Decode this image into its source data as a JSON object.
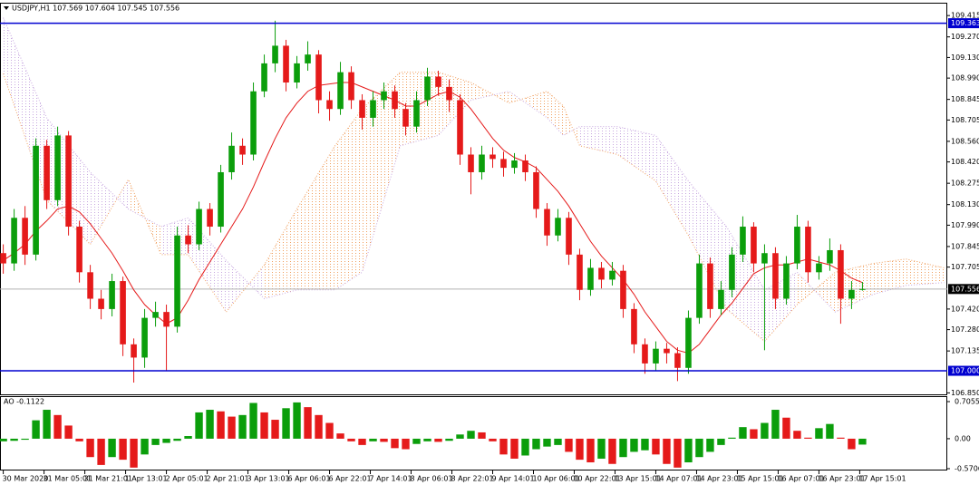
{
  "chart_data": [
    {
      "type": "candlestick",
      "header": "USDJPY,H1 107.569 107.604 107.545 107.556",
      "up_color": "#0b9e0b",
      "down_color": "#e51a1a",
      "open": [
        107.8,
        107.73,
        108.04,
        107.79,
        108.53,
        108.16,
        108.6,
        107.98,
        107.67,
        107.49,
        107.42,
        107.61,
        107.18,
        107.09,
        107.36,
        107.4,
        107.3,
        107.92,
        107.86,
        108.1,
        107.98,
        108.35,
        108.53,
        108.47,
        108.9,
        109.09,
        109.21,
        108.96,
        109.09,
        109.15,
        108.84,
        108.78,
        109.03,
        108.84,
        108.72,
        108.84,
        108.9,
        108.78,
        108.66,
        108.84,
        109.0,
        108.93,
        108.84,
        108.47,
        108.35,
        108.47,
        108.44,
        108.38,
        108.43,
        108.35,
        108.1,
        107.92,
        108.04,
        107.79,
        107.55,
        107.7,
        107.62,
        107.68,
        107.42,
        107.18,
        107.05,
        107.15,
        107.12,
        107.02,
        107.36,
        107.73,
        107.42,
        107.55,
        107.79,
        107.98,
        107.73,
        107.8,
        107.49,
        107.73,
        107.98,
        107.67,
        107.73,
        107.82,
        107.49,
        107.55
      ],
      "high": [
        107.86,
        108.1,
        108.12,
        108.58,
        108.57,
        108.66,
        108.63,
        108.02,
        107.72,
        107.55,
        107.66,
        107.64,
        107.22,
        107.42,
        107.47,
        107.45,
        107.98,
        107.99,
        108.15,
        108.14,
        108.4,
        108.62,
        108.58,
        108.96,
        109.15,
        109.38,
        109.25,
        109.14,
        109.24,
        109.18,
        108.9,
        109.1,
        109.07,
        108.88,
        108.9,
        108.96,
        108.94,
        108.82,
        108.9,
        109.06,
        109.04,
        108.98,
        108.88,
        108.52,
        108.53,
        108.52,
        108.49,
        108.48,
        108.47,
        108.39,
        108.14,
        108.1,
        108.08,
        107.83,
        107.76,
        107.74,
        107.74,
        107.72,
        107.46,
        107.22,
        107.2,
        107.19,
        107.16,
        107.41,
        107.79,
        107.77,
        107.61,
        107.84,
        108.05,
        108.01,
        107.86,
        107.84,
        107.78,
        108.06,
        108.02,
        107.78,
        107.9,
        107.86,
        107.61,
        107.604
      ],
      "low": [
        107.66,
        107.68,
        107.72,
        107.75,
        108.1,
        108.12,
        107.92,
        107.6,
        107.42,
        107.35,
        107.37,
        107.1,
        106.92,
        107.02,
        107.3,
        107.0,
        107.26,
        107.8,
        107.82,
        107.92,
        107.94,
        108.3,
        108.4,
        108.43,
        108.86,
        109.03,
        108.9,
        108.92,
        109.04,
        108.75,
        108.7,
        108.74,
        108.78,
        108.64,
        108.66,
        108.78,
        108.72,
        108.6,
        108.62,
        108.8,
        108.87,
        108.76,
        108.4,
        108.2,
        108.3,
        108.38,
        108.32,
        108.34,
        108.29,
        108.04,
        107.85,
        107.88,
        107.72,
        107.48,
        107.51,
        107.56,
        107.58,
        107.36,
        107.12,
        106.98,
        107.0,
        107.05,
        106.93,
        106.98,
        107.32,
        107.36,
        107.38,
        107.5,
        107.74,
        107.67,
        107.14,
        107.42,
        107.45,
        107.69,
        107.6,
        107.62,
        107.68,
        107.32,
        107.42,
        107.545
      ],
      "close": [
        107.73,
        108.04,
        107.79,
        108.53,
        108.16,
        108.6,
        107.98,
        107.67,
        107.49,
        107.42,
        107.61,
        107.18,
        107.09,
        107.36,
        107.4,
        107.3,
        107.92,
        107.86,
        108.1,
        107.98,
        108.35,
        108.53,
        108.47,
        108.9,
        109.09,
        109.21,
        108.96,
        109.09,
        109.15,
        108.84,
        108.78,
        109.03,
        108.84,
        108.72,
        108.84,
        108.9,
        108.78,
        108.66,
        108.84,
        109.0,
        108.93,
        108.84,
        108.47,
        108.35,
        108.47,
        108.44,
        108.38,
        108.43,
        108.35,
        108.1,
        107.92,
        108.04,
        107.79,
        107.55,
        107.7,
        107.62,
        107.68,
        107.42,
        107.18,
        107.05,
        107.15,
        107.12,
        107.02,
        107.36,
        107.73,
        107.42,
        107.55,
        107.79,
        107.98,
        107.73,
        107.8,
        107.49,
        107.73,
        107.98,
        107.67,
        107.73,
        107.82,
        107.49,
        107.55,
        107.556
      ],
      "ma": {
        "color": "#e51a1a",
        "values": [
          107.75,
          107.8,
          107.86,
          107.95,
          108.02,
          108.1,
          108.12,
          108.08,
          108.0,
          107.9,
          107.8,
          107.68,
          107.55,
          107.45,
          107.38,
          107.32,
          107.36,
          107.48,
          107.62,
          107.74,
          107.86,
          107.98,
          108.1,
          108.25,
          108.42,
          108.58,
          108.72,
          108.82,
          108.9,
          108.94,
          108.95,
          108.96,
          108.96,
          108.93,
          108.9,
          108.87,
          108.84,
          108.8,
          108.8,
          108.84,
          108.88,
          108.9,
          108.86,
          108.78,
          108.68,
          108.58,
          108.5,
          108.45,
          108.42,
          108.38,
          108.3,
          108.22,
          108.12,
          108.0,
          107.88,
          107.78,
          107.7,
          107.62,
          107.52,
          107.4,
          107.3,
          107.2,
          107.14,
          107.12,
          107.18,
          107.28,
          107.38,
          107.46,
          107.56,
          107.66,
          107.7,
          107.72,
          107.72,
          107.74,
          107.76,
          107.74,
          107.72,
          107.68,
          107.63,
          107.6
        ]
      },
      "cloud": {
        "color_a": "#f0a060",
        "color_b": "#c8a8e0",
        "x": [
          0,
          4,
          8,
          11.5,
          14.5,
          17,
          20.5,
          24,
          27,
          30.5,
          33,
          36.5,
          40,
          43,
          46.5,
          50,
          51.5,
          53,
          56.5,
          60,
          63,
          66.5,
          70,
          73,
          76.5,
          80,
          83,
          86.5
        ],
        "span_a": [
          109.02,
          108.16,
          107.86,
          108.3,
          107.79,
          107.79,
          107.4,
          107.72,
          108.1,
          108.53,
          108.78,
          109.03,
          109.03,
          108.96,
          108.82,
          108.9,
          108.8,
          108.53,
          108.47,
          108.29,
          107.92,
          107.42,
          107.2,
          107.45,
          107.67,
          107.73,
          107.76,
          107.7
        ],
        "span_b": [
          109.4,
          108.72,
          108.35,
          108.1,
          107.98,
          108.04,
          107.75,
          107.49,
          107.55,
          107.55,
          107.67,
          108.53,
          108.6,
          108.84,
          108.9,
          108.72,
          108.6,
          108.66,
          108.66,
          108.6,
          108.29,
          107.98,
          107.55,
          107.67,
          107.4,
          107.52,
          107.58,
          107.6
        ]
      },
      "levels": [
        {
          "color": "#0000d0",
          "value": 109.363
        },
        {
          "color": "#0000d0",
          "value": {
            "value": 107.0,
            "label": "107.000"
          }
        }
      ],
      "last_price": 107.556,
      "xlim": [
        -0.3,
        86.8
      ],
      "ylim": [
        106.84,
        109.49
      ],
      "yticks": [
        109.415,
        {
          "value": 109.27,
          "label": "109.270"
        },
        {
          "value": 109.13,
          "label": "109.130"
        },
        {
          "value": 108.99,
          "label": "108.990"
        },
        108.845,
        108.705,
        {
          "value": 108.56,
          "label": "108.560"
        },
        {
          "value": 108.42,
          "label": "108.420"
        },
        108.275,
        {
          "value": 108.13,
          "label": "108.130"
        },
        {
          "value": 107.99,
          "label": "107.990"
        },
        107.845,
        107.705,
        {
          "value": 107.42,
          "label": "107.420"
        },
        {
          "value": 107.28,
          "label": "107.280"
        },
        107.135,
        {
          "value": 106.85,
          "label": "106.850"
        }
      ]
    },
    {
      "type": "bar",
      "label": "AO -0.1122",
      "up_color": "#0b9e0b",
      "down_color": "#e51a1a",
      "values": [
        -0.05,
        -0.04,
        -0.02,
        0.35,
        0.55,
        0.45,
        0.25,
        -0.05,
        -0.35,
        -0.5,
        -0.35,
        -0.4,
        -0.55,
        -0.3,
        -0.12,
        -0.08,
        -0.04,
        0.05,
        0.5,
        0.55,
        0.52,
        0.42,
        0.45,
        0.68,
        0.5,
        0.36,
        0.58,
        0.69,
        0.6,
        0.45,
        0.3,
        0.1,
        -0.05,
        -0.12,
        -0.05,
        -0.06,
        -0.18,
        -0.2,
        -0.1,
        -0.05,
        -0.06,
        -0.04,
        0.08,
        0.15,
        0.12,
        -0.05,
        -0.3,
        -0.38,
        -0.32,
        -0.2,
        -0.15,
        -0.12,
        -0.25,
        -0.4,
        -0.45,
        -0.38,
        -0.48,
        -0.35,
        -0.25,
        -0.22,
        -0.3,
        -0.48,
        -0.55,
        -0.45,
        -0.35,
        -0.25,
        -0.12,
        0.02,
        0.22,
        0.18,
        0.3,
        0.55,
        0.4,
        0.15,
        0.02,
        0.2,
        0.28,
        0.02,
        -0.2,
        -0.1122
      ],
      "xlim": [
        -0.3,
        86.8
      ],
      "ylim": [
        -0.605,
        0.792
      ],
      "yticks": [
        0.7055,
        {
          "value": 0,
          "label": "0.00"
        },
        -0.5706
      ],
      "xticks": [
        {
          "value": 0,
          "label": "30 Mar 2020"
        },
        {
          "value": 3.75,
          "label": "31 Mar 05:01"
        },
        {
          "value": 7.5,
          "label": "31 Mar 21:01"
        },
        {
          "value": 11.25,
          "label": "1 Apr 13:01"
        },
        {
          "value": 15,
          "label": "2 Apr 05:01"
        },
        {
          "value": 18.75,
          "label": "2 Apr 21:01"
        },
        {
          "value": 22.5,
          "label": "3 Apr 13:01"
        },
        {
          "value": 26.25,
          "label": "6 Apr 06:01"
        },
        {
          "value": 30,
          "label": "6 Apr 22:01"
        },
        {
          "value": 33.75,
          "label": "7 Apr 14:01"
        },
        {
          "value": 37.5,
          "label": "8 Apr 06:01"
        },
        {
          "value": 41.25,
          "label": "8 Apr 22:01"
        },
        {
          "value": 45,
          "label": "9 Apr 14:01"
        },
        {
          "value": 48.75,
          "label": "10 Apr 06:01"
        },
        {
          "value": 52.5,
          "label": "10 Apr 22:01"
        },
        {
          "value": 56.25,
          "label": "13 Apr 15:01"
        },
        {
          "value": 60,
          "label": "14 Apr 07:01"
        },
        {
          "value": 63.75,
          "label": "14 Apr 23:01"
        },
        {
          "value": 67.5,
          "label": "15 Apr 15:01"
        },
        {
          "value": 71.25,
          "label": "16 Apr 07:01"
        },
        {
          "value": 75,
          "label": "16 Apr 23:01"
        },
        {
          "value": 78.75,
          "label": "17 Apr 15:01"
        }
      ]
    }
  ]
}
